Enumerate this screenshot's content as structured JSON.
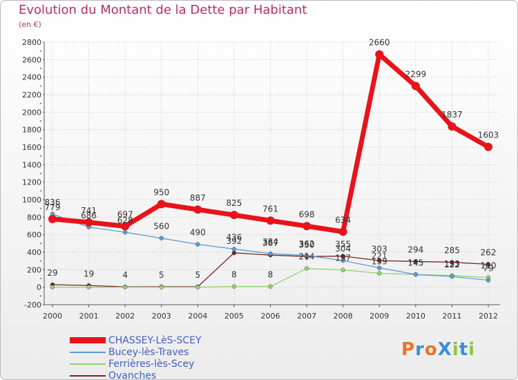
{
  "chart_data": {
    "type": "line",
    "title": "Evolution du Montant de la Dette par Habitant",
    "subtitle": "(en €)",
    "x": [
      "2000",
      "2001",
      "2002",
      "2003",
      "2004",
      "2005",
      "2006",
      "2007",
      "2008",
      "2009",
      "2010",
      "2011",
      "2012"
    ],
    "ylim": [
      -200,
      2800
    ],
    "yticks": [
      -200,
      0,
      200,
      400,
      600,
      800,
      1000,
      1200,
      1400,
      1600,
      1800,
      2000,
      2200,
      2400,
      2600,
      2800
    ],
    "grid": true,
    "legend_position": "bottom-left",
    "series": [
      {
        "name": "CHASSEY-LèS-SCEY",
        "color": "#e8131b",
        "values": [
          779,
          741,
          697,
          950,
          887,
          825,
          761,
          698,
          634,
          2660,
          2299,
          1837,
          1603
        ]
      },
      {
        "name": "Bucey-lès-Traves",
        "color": "#5b9bd5",
        "values": [
          836,
          686,
          628,
          560,
          490,
          436,
          384,
          362,
          304,
          221,
          145,
          122,
          79
        ]
      },
      {
        "name": "Ferrières-lès-Scey",
        "color": "#8fd46a",
        "values": [
          0,
          0,
          0,
          0,
          0,
          8,
          8,
          214,
          197,
          159,
          145,
          133,
          110
        ]
      },
      {
        "name": "Ovanches",
        "color": "#7a2323",
        "values": [
          29,
          19,
          4,
          5,
          5,
          392,
          367,
          350,
          355,
          303,
          294,
          285,
          262
        ]
      }
    ],
    "data_labels": [
      [
        "779",
        "741",
        "697",
        "950",
        "887",
        "825",
        "761",
        "698",
        "634",
        "2660",
        "2299",
        "1837",
        "1603"
      ],
      [
        "836",
        "686",
        "628",
        "560",
        "490",
        "436",
        "384",
        "362",
        "304",
        "221",
        "145",
        "122",
        "79"
      ],
      [
        "",
        "",
        "",
        "",
        "",
        "8",
        "8",
        "214",
        "197",
        "159",
        "145",
        "133",
        "110"
      ],
      [
        "29",
        "19",
        "4",
        "5",
        "5",
        "392",
        "367",
        "350",
        "355",
        "303",
        "294",
        "285",
        "262"
      ]
    ]
  },
  "legend": [
    {
      "label": "CHASSEY-LèS-SCEY"
    },
    {
      "label": "Bucey-lès-Traves"
    },
    {
      "label": "Ferrières-lès-Scey"
    },
    {
      "label": "Ovanches"
    }
  ],
  "logo": {
    "text": "ProXiti",
    "colors": [
      "#e8742a",
      "#3b8ed8",
      "#e8742a",
      "#3b8ed8",
      "#8cc63f",
      "#3b8ed8",
      "#8cc63f"
    ]
  }
}
